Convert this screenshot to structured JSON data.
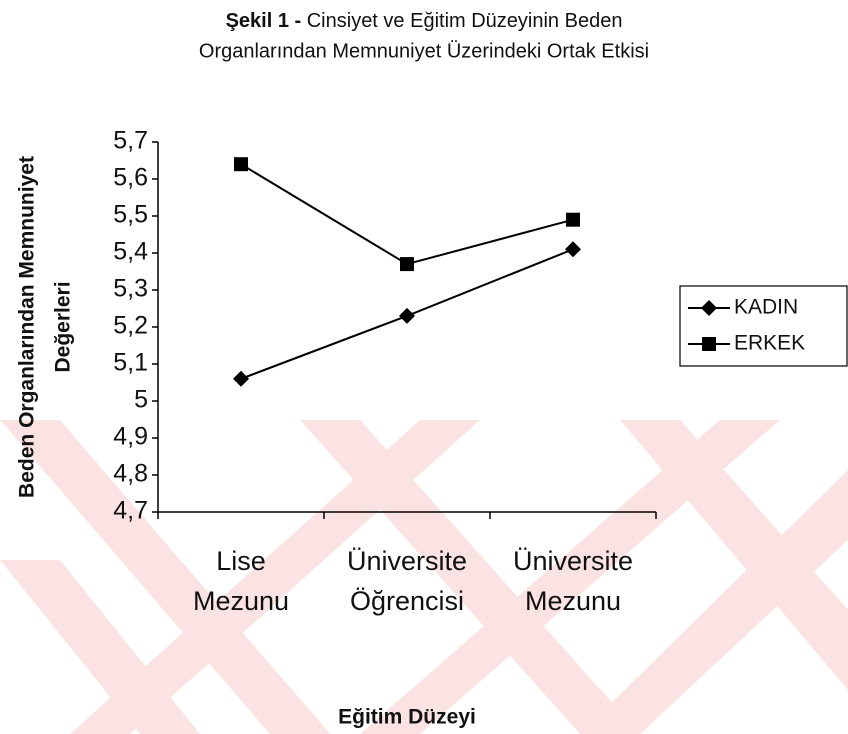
{
  "chart_data": {
    "type": "line",
    "figure_label": "Şekil 1 -",
    "title": [
      "Cinsiyet ve Eğitim Düzeyinin Beden",
      "Organlarından Memnuniyet Üzerindeki Ortak Etkisi"
    ],
    "x_label": "Eğitim Düzeyi",
    "y_label": [
      "Beden Organlarından Memnuniyet",
      "Değerleri"
    ],
    "categories": [
      [
        "Lise",
        "Mezunu"
      ],
      [
        "Üniversite",
        "Öğrencisi"
      ],
      [
        "Üniversite",
        "Mezunu"
      ]
    ],
    "series": [
      {
        "name": "KADIN",
        "color": "#000000",
        "marker": "diamond",
        "values": [
          5.06,
          5.23,
          5.41
        ]
      },
      {
        "name": "ERKEK",
        "color": "#000000",
        "marker": "square",
        "values": [
          5.64,
          5.37,
          5.49
        ]
      }
    ],
    "ylim": [
      4.7,
      5.7
    ],
    "yticks": [
      {
        "value": 4.7,
        "label": "4,7"
      },
      {
        "value": 4.8,
        "label": "4,8"
      },
      {
        "value": 4.9,
        "label": "4,9"
      },
      5,
      {
        "value": 5.1,
        "label": "5,1"
      },
      {
        "value": 5.2,
        "label": "5,2"
      },
      {
        "value": 5.3,
        "label": "5,3"
      },
      {
        "value": 5.4,
        "label": "5,4"
      },
      {
        "value": 5.5,
        "label": "5,5"
      },
      {
        "value": 5.6,
        "label": "5,6"
      },
      {
        "value": 5.7,
        "label": "5,7"
      }
    ],
    "legend": "right"
  }
}
